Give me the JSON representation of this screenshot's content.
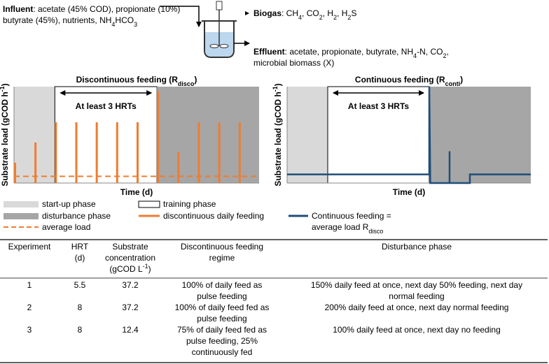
{
  "reactor": {
    "influent": {
      "lines": [
        [
          {
            "b": "Influent"
          },
          ": acetate (45% COD), propionate (10%)"
        ],
        [
          "butyrate (45%), nutrients, NH",
          {
            "sub": "4"
          },
          "HCO",
          {
            "sub": "3"
          }
        ]
      ]
    },
    "biogas": {
      "lines": [
        [
          {
            "b": "Biogas"
          },
          ": CH",
          {
            "sub": "4"
          },
          ", CO",
          {
            "sub": "2"
          },
          ", H",
          {
            "sub": "2"
          },
          ", H",
          {
            "sub": "2"
          },
          "S"
        ]
      ]
    },
    "effluent": {
      "lines": [
        [
          {
            "b": "Effluent"
          },
          ": acetate, propionate, butyrate, NH",
          {
            "sub": "4"
          },
          "-N, CO",
          {
            "sub": "2"
          },
          ","
        ],
        [
          "microbial biomass (X)"
        ]
      ]
    }
  },
  "chart_data": [
    {
      "type": "pulse",
      "title": [
        {
          "b": "Discontinuous feeding (R"
        },
        {
          "bsub": "disco"
        },
        {
          "b": ")"
        }
      ],
      "ylabel": [
        {
          "b": "Substrate load (gCOD h"
        },
        {
          "bsup": "-1"
        },
        {
          "b": ")"
        }
      ],
      "xlabel": "Time (d)",
      "annotation": "At least 3 HRTs",
      "xlim": [
        0,
        12
      ],
      "ylim": [
        0,
        10
      ],
      "phases": [
        {
          "x": [
            0,
            2
          ],
          "color": "#d9d9d9"
        },
        {
          "x": [
            2,
            7
          ],
          "color": "#ffffff"
        },
        {
          "x": [
            7,
            12
          ],
          "color": "#a6a6a6"
        }
      ],
      "x": [
        0,
        1,
        2,
        3,
        4,
        5,
        6,
        7,
        8,
        9,
        10,
        11
      ],
      "values": [
        2.1,
        4.2,
        6.3,
        6.3,
        6.3,
        6.3,
        6.3,
        9.5,
        3.2,
        6.3,
        6.3,
        6.3
      ],
      "color": "#ed7d31",
      "average": 0.7
    },
    {
      "type": "line",
      "title": [
        {
          "b": "Continuous feeding (R"
        },
        {
          "bsub": "conti"
        },
        {
          "b": ")"
        }
      ],
      "ylabel": [
        {
          "b": "Substrate load (gCOD h"
        },
        {
          "bsup": "-1"
        },
        {
          "b": ")"
        }
      ],
      "xlabel": "Time (d)",
      "annotation": "At least 3 HRTs",
      "xlim": [
        0,
        12
      ],
      "ylim": [
        0,
        10
      ],
      "phases": [
        {
          "x": [
            0,
            2
          ],
          "color": "#d9d9d9"
        },
        {
          "x": [
            2,
            7
          ],
          "color": "#ffffff"
        },
        {
          "x": [
            7,
            12
          ],
          "color": "#a6a6a6"
        }
      ],
      "x": [
        0,
        7,
        7,
        7.05,
        8,
        8,
        8,
        9,
        9,
        12
      ],
      "values": [
        0.9,
        0.9,
        10,
        0,
        0,
        3.3,
        0,
        0,
        0.9,
        0.9
      ],
      "color": "#1f4e79"
    }
  ],
  "legend": {
    "items": [
      {
        "lines": [
          "start-up phase"
        ],
        "swatch": "box",
        "color": "#d9d9d9"
      },
      {
        "lines": [
          "disturbance phase"
        ],
        "swatch": "box",
        "color": "#a6a6a6"
      },
      {
        "lines": [
          "average load"
        ],
        "swatch": "dash",
        "color": "#ed7d31"
      },
      {
        "lines": [
          "training phase"
        ],
        "swatch": "box",
        "color": "#ffffff"
      },
      {
        "lines": [
          "discontinuous daily feeding"
        ],
        "swatch": "line",
        "color": "#ed7d31"
      },
      {
        "lines": [
          "Continuous feeding =",
          [
            "average load R",
            {
              "sub": "disco"
            }
          ]
        ],
        "swatch": "line",
        "color": "#1f4e79"
      }
    ]
  },
  "table": {
    "header": [
      {
        "lines": [
          "Experiment"
        ]
      },
      {
        "lines": [
          "HRT",
          "(d)"
        ]
      },
      {
        "lines": [
          "Substrate",
          "concentration",
          [
            "(gCOD L",
            {
              "sup": "-1"
            },
            ")"
          ]
        ]
      },
      {
        "lines": [
          "Discontinuous feeding",
          "regime"
        ]
      },
      {
        "lines": [
          "Disturbance phase"
        ]
      }
    ],
    "rows": [
      [
        {
          "lines": [
            "1"
          ]
        },
        {
          "lines": [
            "5.5"
          ]
        },
        {
          "lines": [
            "37.2"
          ]
        },
        {
          "lines": [
            "100% of daily feed as",
            "pulse feeding"
          ]
        },
        {
          "lines": [
            "150% daily feed at once, next day 50% feeding, next day",
            "normal feeding"
          ]
        }
      ],
      [
        {
          "lines": [
            "2"
          ]
        },
        {
          "lines": [
            "8"
          ]
        },
        {
          "lines": [
            "37.2"
          ]
        },
        {
          "lines": [
            "100% of daily feed fed as",
            "pulse feeding"
          ]
        },
        {
          "lines": [
            "200% daily feed at once, next day normal feeding"
          ]
        }
      ],
      [
        {
          "lines": [
            "3"
          ]
        },
        {
          "lines": [
            "8"
          ]
        },
        {
          "lines": [
            "12.4"
          ]
        },
        {
          "lines": [
            "75% of daily feed fed as",
            "pulse feeding, 25%",
            "continuously fed"
          ]
        },
        {
          "lines": [
            "100% daily feed at once, next day no feeding"
          ]
        }
      ]
    ]
  }
}
